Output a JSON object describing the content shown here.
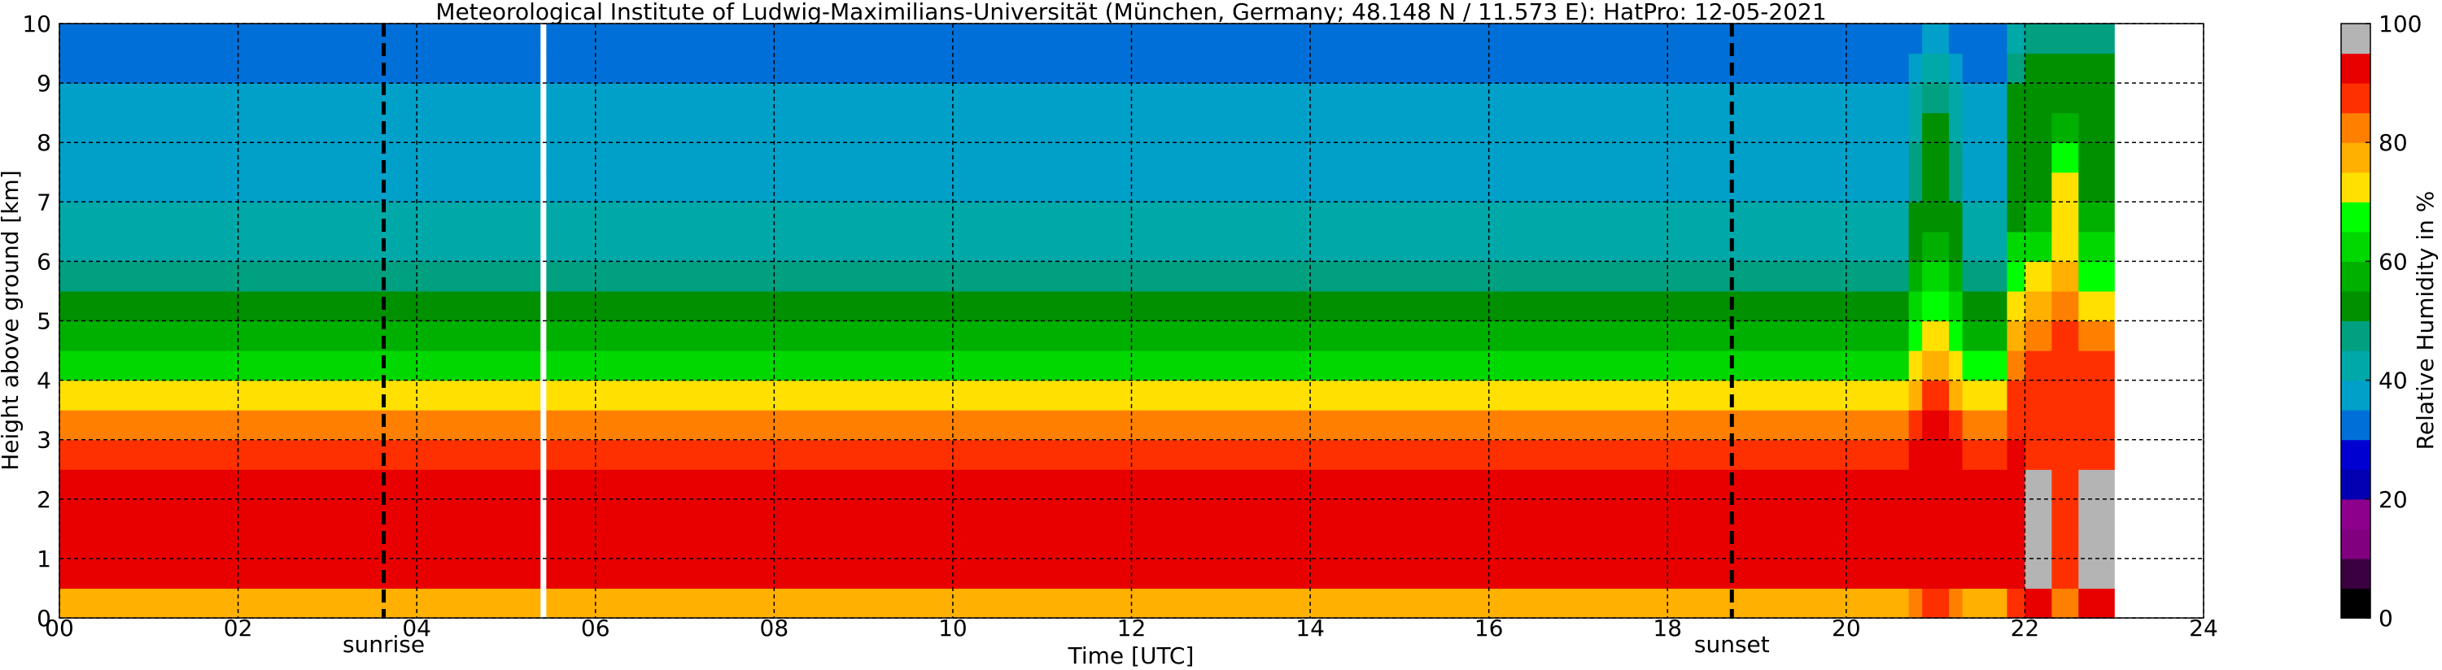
{
  "chart_data": {
    "type": "heatmap",
    "title": "Meteorological Institute of Ludwig-Maximilians-Universität (München, Germany; 48.148 N / 11.573 E):    HatPro: 12-05-2021",
    "xlabel": "Time [UTC]",
    "ylabel": "Height above ground [km]",
    "zlabel": "Relative Humidity in %",
    "xlim": [
      0,
      24
    ],
    "ylim": [
      0,
      10
    ],
    "zlim": [
      0,
      100
    ],
    "xticks": [
      {
        "value": 0,
        "label": "00"
      },
      {
        "value": 2,
        "label": "02"
      },
      {
        "value": 4,
        "label": "04"
      },
      {
        "value": 6,
        "label": "06"
      },
      {
        "value": 8,
        "label": "08"
      },
      10,
      12,
      14,
      16,
      18,
      20,
      22,
      24
    ],
    "yticks": [
      0,
      1,
      2,
      3,
      4,
      5,
      6,
      7,
      8,
      9,
      10
    ],
    "zticks": [
      0,
      20,
      40,
      60,
      80,
      100
    ],
    "grid": true,
    "x_edges": [
      0,
      5.38,
      5.45,
      20.7,
      20.85,
      21.15,
      21.3,
      21.8,
      22.0,
      22.3,
      22.6,
      23
    ],
    "y_edges": [
      0,
      0.5,
      1,
      1.5,
      2,
      2.5,
      3,
      3.5,
      4,
      4.5,
      5,
      5.5,
      6,
      6.5,
      7,
      7.5,
      8,
      8.5,
      9,
      9.5,
      10
    ],
    "z": [
      [
        78,
        null,
        78,
        82,
        88,
        82,
        78,
        88,
        90,
        80,
        90
      ],
      [
        90,
        null,
        90,
        92,
        92,
        92,
        90,
        93,
        96,
        88,
        95
      ],
      [
        92,
        null,
        92,
        93,
        92,
        93,
        92,
        93,
        96,
        88,
        95
      ],
      [
        92,
        null,
        92,
        93,
        92,
        93,
        92,
        93,
        96,
        88,
        95
      ],
      [
        90,
        null,
        90,
        92,
        91,
        92,
        90,
        93,
        96,
        88,
        95
      ],
      [
        87,
        null,
        87,
        90,
        90,
        90,
        87,
        93,
        88,
        88,
        88
      ],
      [
        80,
        null,
        80,
        85,
        90,
        85,
        80,
        88,
        88,
        88,
        88
      ],
      [
        73,
        null,
        73,
        78,
        88,
        78,
        73,
        88,
        88,
        88,
        88
      ],
      [
        64,
        null,
        64,
        72,
        78,
        72,
        66,
        82,
        88,
        88,
        86
      ],
      [
        58,
        null,
        58,
        66,
        74,
        66,
        58,
        78,
        82,
        85,
        80
      ],
      [
        53,
        null,
        53,
        60,
        66,
        60,
        53,
        72,
        78,
        82,
        72
      ],
      [
        48,
        null,
        48,
        56,
        60,
        56,
        48,
        68,
        72,
        76,
        68
      ],
      [
        44,
        null,
        44,
        54,
        56,
        54,
        44,
        60,
        64,
        72,
        62
      ],
      [
        40,
        null,
        40,
        50,
        54,
        50,
        40,
        54,
        56,
        72,
        55
      ],
      [
        39,
        null,
        39,
        48,
        53,
        48,
        39,
        52,
        53,
        72,
        52
      ],
      [
        38,
        null,
        38,
        46,
        52,
        46,
        38,
        52,
        52,
        66,
        52
      ],
      [
        37,
        null,
        37,
        44,
        50,
        44,
        37,
        52,
        52,
        58,
        52
      ],
      [
        36,
        null,
        36,
        40,
        46,
        40,
        36,
        52,
        52,
        54,
        52
      ],
      [
        34,
        null,
        34,
        37,
        40,
        37,
        34,
        46,
        52,
        50,
        50
      ],
      [
        33,
        null,
        33,
        34,
        36,
        34,
        33,
        44,
        46,
        46,
        46
      ]
    ],
    "levels": [
      0,
      5,
      10,
      15,
      20,
      25,
      30,
      35,
      40,
      45,
      50,
      55,
      60,
      65,
      70,
      75,
      80,
      85,
      90,
      95
    ],
    "colors": [
      "#000000",
      "#3a0040",
      "#800080",
      "#8c008c",
      "#0000b0",
      "#0000d0",
      "#0070d8",
      "#00a0c8",
      "#00a8a8",
      "#00a080",
      "#009000",
      "#00b000",
      "#00d800",
      "#00ff00",
      "#ffe000",
      "#ffb000",
      "#ff8000",
      "#ff3000",
      "#e80000",
      "#b4b4b4"
    ],
    "vlines": [
      {
        "x": 3.63,
        "label": "sunrise"
      },
      {
        "x": 18.72,
        "label": "sunset"
      }
    ]
  }
}
